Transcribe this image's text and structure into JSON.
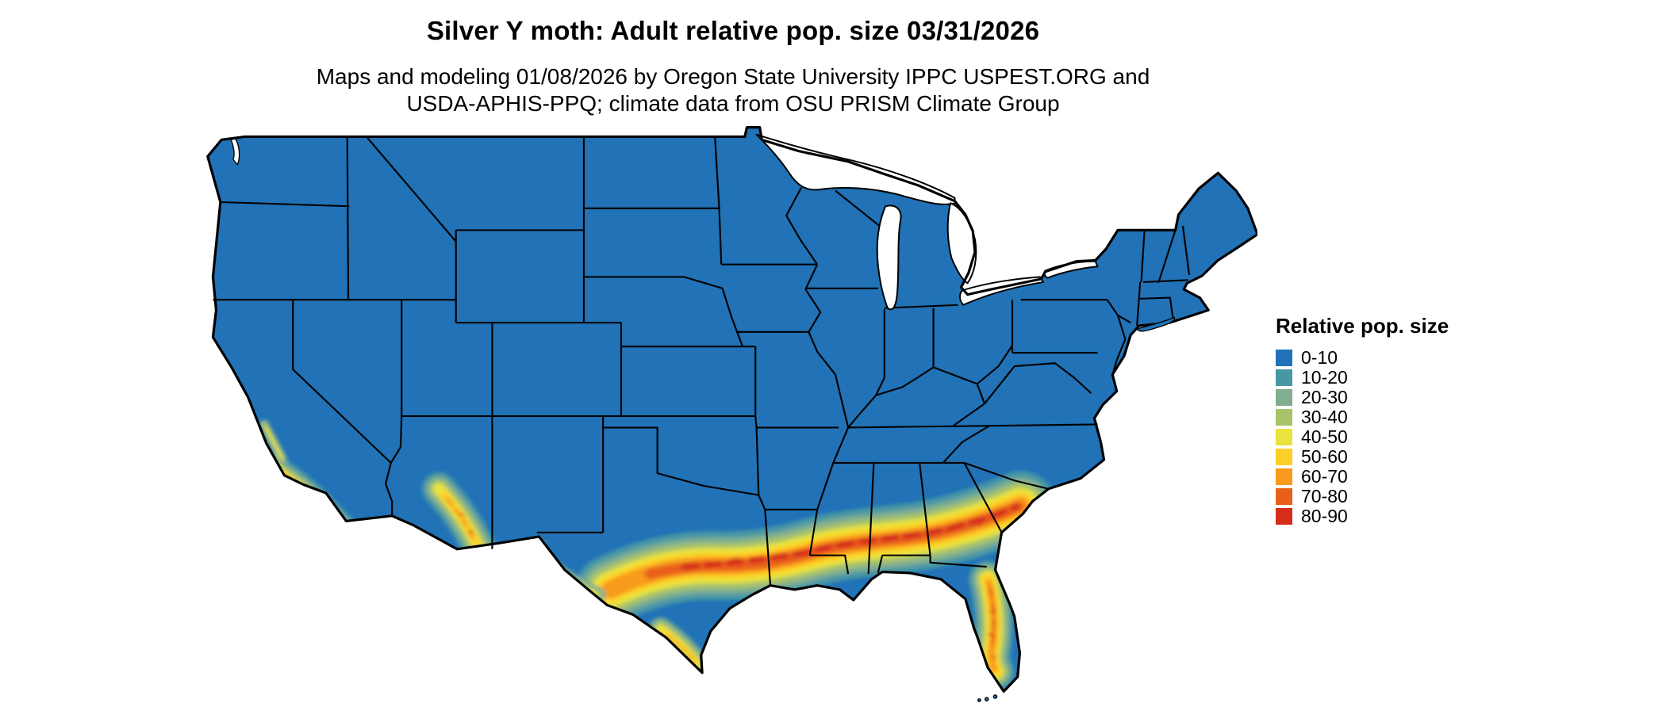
{
  "title": "Silver Y moth: Adult relative pop. size 03/31/2026",
  "subtitle_line1": "Maps and modeling 01/08/2026 by Oregon State University IPPC USPEST.ORG and",
  "subtitle_line2": "USDA-APHIS-PPQ; climate data from OSU PRISM Climate Group",
  "legend": {
    "title": "Relative pop. size",
    "items": [
      {
        "label": "0-10",
        "color": "#2172b6"
      },
      {
        "label": "10-20",
        "color": "#4897a5"
      },
      {
        "label": "20-30",
        "color": "#7fae90"
      },
      {
        "label": "30-40",
        "color": "#a9c36a"
      },
      {
        "label": "40-50",
        "color": "#e8e33d"
      },
      {
        "label": "50-60",
        "color": "#fdd028"
      },
      {
        "label": "60-70",
        "color": "#f89a1d"
      },
      {
        "label": "70-80",
        "color": "#e9601b"
      },
      {
        "label": "80-90",
        "color": "#d62e1b"
      }
    ]
  },
  "map": {
    "region": "Contiguous United States",
    "base_class": "0-10",
    "outline_color": "#000000",
    "water_color": "#ffffff",
    "background": "#ffffff"
  }
}
